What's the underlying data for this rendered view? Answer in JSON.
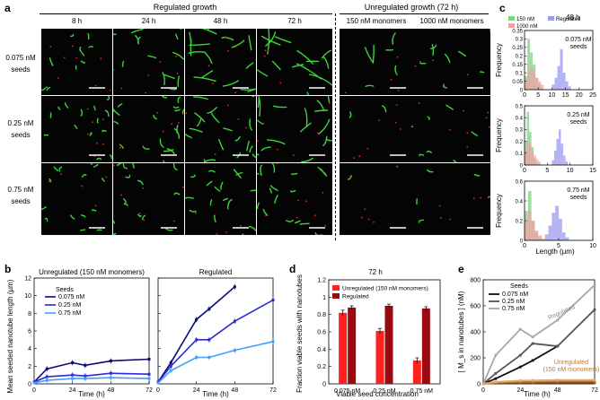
{
  "panel_letters": {
    "a": "a",
    "b": "b",
    "c": "c",
    "d": "d",
    "e": "e"
  },
  "panel_a": {
    "regulated_header": "Regulated growth",
    "unregulated_header": "Unregulated growth (72 h)",
    "time_columns": [
      "8 h",
      "24 h",
      "48 h",
      "72 h"
    ],
    "monomer_columns": [
      "150 nM monomers",
      "1000 nM monomers"
    ],
    "rows": [
      "0.075 nM seeds",
      "0.25 nM seeds",
      "0.75 nM seeds"
    ]
  },
  "panel_b": {
    "ylabel": "Mean seeded nanotube length (µm)",
    "left_title": "Unregulated (150 nM monomers)",
    "right_title": "Regulated",
    "legend_title": "Seeds",
    "xlabel": "Time (h)"
  },
  "panel_c": {
    "title": "48 h",
    "legend": [
      "150 nM",
      "1000 nM",
      "Regulated"
    ],
    "ylabel": "Frequency",
    "xlabel": "Length (µm)",
    "subplot_labels": [
      "0.075 nM seeds",
      "0.25 nM seeds",
      "0.75 nM seeds"
    ]
  },
  "panel_d": {
    "title": "72 h",
    "ylabel": "Fraction viable seeds with nanotubes",
    "xlabel": "Viable seed concentration",
    "legend": [
      "Unregulated (150 nM monomers)",
      "Regulated"
    ]
  },
  "panel_e": {
    "ylabel": "[ M_s in nanotubes ] (nM)",
    "xlabel": "Time (h)",
    "legend_title": "Seeds",
    "regulated_label": "Regulated",
    "unregulated_label": "Unregulated (150 nM monomers)"
  },
  "chart_data": [
    {
      "type": "line",
      "title": "Unregulated (150 nM monomers)",
      "xlabel": "Time (h)",
      "ylabel": "Mean seeded nanotube length (µm)",
      "xlim": [
        0,
        72
      ],
      "ylim": [
        0,
        12
      ],
      "xticks": [
        0,
        24,
        48,
        72
      ],
      "yticks": [
        0,
        2,
        4,
        6,
        8,
        10,
        12
      ],
      "legend_title": "Seeds",
      "series": [
        {
          "name": "0.075 nM",
          "color": "#0a0a7a",
          "x": [
            0,
            8,
            24,
            32,
            48,
            72
          ],
          "y": [
            0.2,
            1.7,
            2.4,
            2.1,
            2.6,
            2.8
          ]
        },
        {
          "name": "0.25 nM",
          "color": "#2b2bd4",
          "x": [
            0,
            8,
            24,
            32,
            48,
            72
          ],
          "y": [
            0.2,
            0.8,
            1.0,
            0.9,
            1.2,
            1.1
          ]
        },
        {
          "name": "0.75 nM",
          "color": "#3fa0ff",
          "x": [
            0,
            8,
            24,
            32,
            48,
            72
          ],
          "y": [
            0.1,
            0.4,
            0.6,
            0.6,
            0.7,
            0.6
          ]
        }
      ]
    },
    {
      "type": "line",
      "title": "Regulated",
      "xlabel": "Time (h)",
      "xlim": [
        0,
        72
      ],
      "ylim": [
        0,
        12
      ],
      "xticks": [
        0,
        24,
        48,
        72
      ],
      "series": [
        {
          "name": "0.075 nM",
          "color": "#0a0a7a",
          "x": [
            0,
            8,
            24,
            32,
            48
          ],
          "y": [
            0.2,
            2.4,
            7.3,
            8.5,
            11.0
          ]
        },
        {
          "name": "0.25 nM",
          "color": "#2b2bd4",
          "x": [
            0,
            8,
            24,
            32,
            48,
            72
          ],
          "y": [
            0.2,
            2.0,
            5.0,
            5.0,
            7.1,
            9.5
          ]
        },
        {
          "name": "0.75 nM",
          "color": "#3fa0ff",
          "x": [
            0,
            8,
            24,
            32,
            48,
            72
          ],
          "y": [
            0.1,
            1.5,
            3.0,
            3.0,
            3.8,
            4.8
          ]
        }
      ]
    },
    {
      "type": "bar",
      "title": "48 h",
      "subplot": "0.075 nM seeds",
      "xlabel": "Length (µm)",
      "ylabel": "Frequency",
      "xlim": [
        0,
        25
      ],
      "ylim": [
        0,
        0.35
      ],
      "xticks": [
        0,
        5,
        10,
        15,
        20,
        25
      ],
      "yticks": [
        0,
        0.05,
        0.1,
        0.15,
        0.2,
        0.25,
        0.3,
        0.35
      ],
      "bin_width": 1,
      "series": [
        {
          "name": "150 nM",
          "color": "#7fd37f",
          "bin_starts": [
            0,
            1,
            2,
            3,
            4,
            5
          ],
          "values": [
            0.08,
            0.3,
            0.22,
            0.15,
            0.07,
            0.03
          ]
        },
        {
          "name": "1000 nM",
          "color": "#f2a0a8",
          "bin_starts": [
            0,
            1,
            2,
            3,
            4,
            5,
            6
          ],
          "values": [
            0.05,
            0.1,
            0.13,
            0.11,
            0.07,
            0.05,
            0.03
          ]
        },
        {
          "name": "Regulated",
          "color": "#9b9bf0",
          "bin_starts": [
            10,
            11,
            12,
            13,
            14,
            15,
            16
          ],
          "values": [
            0.03,
            0.07,
            0.14,
            0.24,
            0.1,
            0.05,
            0.02
          ]
        }
      ]
    },
    {
      "type": "bar",
      "subplot": "0.25 nM seeds",
      "xlabel": "Length (µm)",
      "ylabel": "Frequency",
      "xlim": [
        0,
        15
      ],
      "ylim": [
        0,
        0.5
      ],
      "xticks": [
        0,
        5,
        10,
        15
      ],
      "yticks": [
        0,
        0.1,
        0.2,
        0.3,
        0.4,
        0.5
      ],
      "bin_width": 0.5,
      "series": [
        {
          "name": "150 nM",
          "color": "#7fd37f",
          "bin_starts": [
            0,
            0.5,
            1,
            1.5,
            2,
            2.5
          ],
          "values": [
            0.2,
            0.45,
            0.28,
            0.15,
            0.06,
            0.02
          ]
        },
        {
          "name": "1000 nM",
          "color": "#f2a0a8",
          "bin_starts": [
            0,
            0.5,
            1,
            1.5,
            2,
            2.5,
            3
          ],
          "values": [
            0.12,
            0.2,
            0.18,
            0.12,
            0.08,
            0.05,
            0.03
          ]
        },
        {
          "name": "Regulated",
          "color": "#9b9bf0",
          "bin_starts": [
            6,
            6.5,
            7,
            7.5,
            8,
            8.5,
            9
          ],
          "values": [
            0.04,
            0.12,
            0.22,
            0.3,
            0.18,
            0.08,
            0.03
          ]
        }
      ]
    },
    {
      "type": "bar",
      "subplot": "0.75 nM seeds",
      "xlabel": "Length (µm)",
      "ylabel": "Frequency",
      "xlim": [
        0,
        10
      ],
      "ylim": [
        0,
        0.6
      ],
      "xticks": [
        0,
        5,
        10
      ],
      "yticks": [
        0,
        0.2,
        0.4,
        0.6
      ],
      "bin_width": 0.5,
      "series": [
        {
          "name": "150 nM",
          "color": "#7fd37f",
          "bin_starts": [
            0,
            0.5,
            1,
            1.5,
            2
          ],
          "values": [
            0.3,
            0.5,
            0.2,
            0.08,
            0.03
          ]
        },
        {
          "name": "1000 nM",
          "color": "#f2a0a8",
          "bin_starts": [
            0,
            0.5,
            1,
            1.5,
            2,
            2.5
          ],
          "values": [
            0.2,
            0.3,
            0.2,
            0.1,
            0.05,
            0.02
          ]
        },
        {
          "name": "Regulated",
          "color": "#9b9bf0",
          "bin_starts": [
            3,
            3.5,
            4,
            4.5,
            5,
            5.5,
            6
          ],
          "values": [
            0.06,
            0.15,
            0.28,
            0.35,
            0.22,
            0.08,
            0.03
          ]
        }
      ]
    },
    {
      "type": "bar",
      "title": "72 h",
      "xlabel": "Viable seed concentration",
      "ylabel": "Fraction viable seeds with nanotubes",
      "categories": [
        "0.075 nM",
        "0.25 nM",
        "0.75 nM"
      ],
      "ylim": [
        0,
        1.2
      ],
      "yticks": [
        0,
        0.2,
        0.4,
        0.6,
        0.8,
        1,
        1.2
      ],
      "series": [
        {
          "name": "Unregulated (150 nM monomers)",
          "color": "#ff2020",
          "values": [
            0.82,
            0.61,
            0.27
          ],
          "errors": [
            0.03,
            0.03,
            0.03
          ]
        },
        {
          "name": "Regulated",
          "color": "#9b0a10",
          "values": [
            0.88,
            0.9,
            0.87
          ],
          "errors": [
            0.02,
            0.02,
            0.02
          ]
        }
      ]
    },
    {
      "type": "line",
      "xlabel": "Time (h)",
      "ylabel": "[ M_s in nanotubes ] (nM)",
      "xlim": [
        0,
        72
      ],
      "ylim": [
        0,
        800
      ],
      "xticks": [
        0,
        24,
        48,
        72
      ],
      "yticks": [
        0,
        200,
        400,
        600,
        800
      ],
      "legend_title": "Seeds",
      "series": [
        {
          "name": "0.075 nM",
          "group": "Regulated",
          "color": "#111111",
          "x": [
            0,
            8,
            24,
            32,
            48
          ],
          "y": [
            0,
            40,
            130,
            180,
            290
          ]
        },
        {
          "name": "0.25 nM",
          "group": "Regulated",
          "color": "#555555",
          "x": [
            0,
            8,
            24,
            32,
            48,
            72
          ],
          "y": [
            0,
            80,
            220,
            310,
            290,
            570
          ]
        },
        {
          "name": "0.75 nM",
          "group": "Regulated",
          "color": "#a8a8a8",
          "x": [
            0,
            8,
            24,
            32,
            48,
            72
          ],
          "y": [
            0,
            220,
            420,
            360,
            490,
            760
          ]
        },
        {
          "name": "0.075 nM",
          "group": "Unregulated",
          "color": "#7a4a10",
          "x": [
            0,
            8,
            24,
            32,
            48,
            72
          ],
          "y": [
            0,
            5,
            8,
            8,
            9,
            9
          ]
        },
        {
          "name": "0.25 nM",
          "group": "Unregulated",
          "color": "#b8732a",
          "x": [
            0,
            8,
            24,
            32,
            48,
            72
          ],
          "y": [
            0,
            10,
            15,
            15,
            18,
            18
          ]
        },
        {
          "name": "0.75 nM",
          "group": "Unregulated",
          "color": "#e8a868",
          "x": [
            0,
            8,
            24,
            32,
            48,
            72
          ],
          "y": [
            0,
            15,
            25,
            27,
            30,
            30
          ]
        }
      ]
    }
  ]
}
